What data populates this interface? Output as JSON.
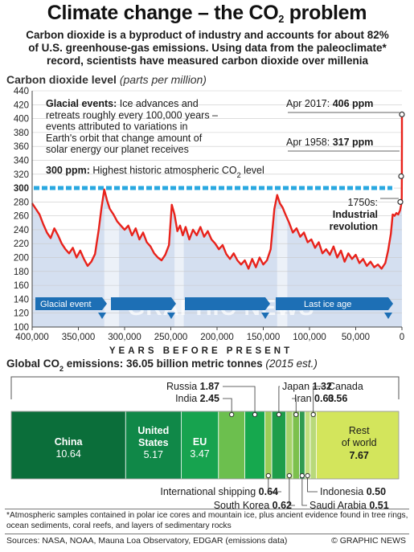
{
  "header": {
    "title_pre": "Climate change – the CO",
    "title_sub": "2",
    "title_post": " problem",
    "intro_lines": [
      "Carbon dioxide is a byproduct of industry and accounts for about 82%",
      "of U.S. greenhouse-gas emissions. Using data from the paleoclimate*",
      "record, scientists have measured carbon dioxide over millenia"
    ]
  },
  "section_co2": {
    "title": "Carbon dioxide level",
    "unit": "(parts per million)"
  },
  "chart_data": [
    {
      "type": "line",
      "title": "Carbon dioxide level",
      "ylabel": "(parts per million)",
      "xlabel": "YEARS BEFORE PRESENT",
      "x_reversed": true,
      "xlim": [
        400000,
        0
      ],
      "ylim": [
        100,
        440
      ],
      "y_ticks": [
        100,
        120,
        140,
        160,
        180,
        200,
        220,
        240,
        260,
        280,
        300,
        320,
        340,
        360,
        380,
        400,
        420,
        440
      ],
      "x_ticks": [
        400000,
        350000,
        300000,
        250000,
        200000,
        150000,
        100000,
        50000,
        0
      ],
      "x_tick_labels": [
        "400,000",
        "350,000",
        "300,000",
        "250,000",
        "200,000",
        "150,000",
        "100,000",
        "50,000",
        "0"
      ],
      "grid": true,
      "series": [
        {
          "color": "#e8221b",
          "x": [
            400000,
            396000,
            392000,
            388000,
            384000,
            380000,
            376000,
            372000,
            368000,
            364000,
            360000,
            356000,
            352000,
            348000,
            344000,
            340000,
            336000,
            332000,
            328000,
            325000,
            322000,
            319000,
            316000,
            312000,
            308000,
            304000,
            300000,
            296000,
            292000,
            288000,
            284000,
            280000,
            276000,
            272000,
            268000,
            264000,
            260000,
            256000,
            252000,
            249000,
            246000,
            243000,
            240000,
            237000,
            234000,
            230000,
            226000,
            222000,
            218000,
            214000,
            210000,
            206000,
            202000,
            198000,
            194000,
            190000,
            186000,
            182000,
            178000,
            174000,
            170000,
            166000,
            162000,
            158000,
            154000,
            150000,
            146000,
            142000,
            138000,
            135000,
            132000,
            129000,
            126000,
            122000,
            118000,
            114000,
            110000,
            106000,
            102000,
            98000,
            94000,
            90000,
            86000,
            82000,
            78000,
            74000,
            70000,
            66000,
            62000,
            58000,
            54000,
            50000,
            46000,
            42000,
            38000,
            34000,
            30000,
            26000,
            22000,
            18000,
            15000,
            12000,
            10000,
            8000,
            6000,
            4000,
            2000,
            1000,
            400,
            270,
            200,
            150,
            100,
            60,
            30,
            0
          ],
          "values": [
            278,
            270,
            262,
            248,
            236,
            228,
            242,
            232,
            220,
            212,
            206,
            214,
            200,
            210,
            198,
            188,
            194,
            205,
            240,
            272,
            298,
            282,
            270,
            262,
            252,
            246,
            240,
            246,
            232,
            242,
            226,
            236,
            222,
            216,
            206,
            200,
            196,
            204,
            218,
            276,
            262,
            238,
            246,
            232,
            244,
            226,
            240,
            232,
            244,
            230,
            238,
            226,
            220,
            212,
            218,
            205,
            198,
            206,
            196,
            190,
            196,
            184,
            198,
            186,
            200,
            190,
            196,
            212,
            270,
            290,
            278,
            272,
            262,
            250,
            236,
            242,
            230,
            236,
            222,
            226,
            214,
            222,
            206,
            212,
            204,
            216,
            200,
            210,
            194,
            206,
            198,
            204,
            192,
            198,
            188,
            194,
            186,
            190,
            184,
            192,
            210,
            234,
            262,
            260,
            264,
            262,
            268,
            275,
            280,
            280,
            290,
            300,
            317,
            335,
            370,
            406
          ]
        }
      ],
      "reference_line": {
        "value": 300,
        "color": "#2aa8e0",
        "label_bold": "300 ppm:",
        "label_pre": " Highest historic atmospheric CO",
        "label_sub": "2",
        "label_post": " level"
      },
      "annotations": {
        "glacial_bold": "Glacial events:",
        "glacial_lines": [
          " Ice advances and",
          "retreats roughly every 100,000 years –",
          "events attributed to variations in",
          "Earth's orbit that change amount of",
          "solar energy our planet receives"
        ],
        "apr2017_pre": "Apr 2017: ",
        "apr2017_val": "406 ppm",
        "apr1958_pre": "Apr 1958: ",
        "apr1958_val": "317 ppm",
        "industrial_pre": "1750s:",
        "industrial_bold_1": "Industrial",
        "industrial_bold_2": "revolution",
        "glacial_event_label": "Glacial event",
        "last_ice_age_label": "Last ice age",
        "watermark": "GRAPHIC NEWS"
      },
      "x_axis_title": "YEARS BEFORE PRESENT"
    },
    {
      "type": "bar",
      "title_pre": "Global CO",
      "title_sub": "2",
      "title_post": " emissions: 36.05 billion metric tonnes",
      "title_note": "(2015 est.)",
      "units": "billion metric tonnes",
      "categories": [
        "China",
        "United States",
        "EU",
        "India",
        "Russia",
        "International shipping",
        "Japan",
        "South Korea",
        "Iran",
        "Saudi Arabia",
        "Indonesia",
        "Canada",
        "Rest of world"
      ],
      "values": [
        10.64,
        5.17,
        3.47,
        2.45,
        1.87,
        0.64,
        1.32,
        0.62,
        0.63,
        0.51,
        0.5,
        0.56,
        7.67
      ],
      "colors": [
        "#0b6e3a",
        "#108848",
        "#17a34f",
        "#6cbf4e",
        "#16a84e",
        "#9acd57",
        "#1e9d4a",
        "#a7d36a",
        "#7cc04d",
        "#2f9b50",
        "#c2df7d",
        "#b8d97a",
        "#d3e55c"
      ],
      "inside_labels": [
        {
          "name": "China",
          "value": "10.64"
        },
        {
          "name_1": "United",
          "name_2": "States",
          "value": "5.17"
        },
        {
          "name": "EU",
          "value": "3.47"
        },
        {
          "name_1": "Rest",
          "name_2": "of world",
          "value": "7.67"
        }
      ],
      "top_callouts": [
        {
          "name": "Russia ",
          "value": "1.87"
        },
        {
          "name": "India ",
          "value": "2.45"
        },
        {
          "name": "Japan ",
          "value": "1.32"
        },
        {
          "name": "Iran ",
          "value": "0.63"
        },
        {
          "name": "Canada",
          "value": "0.56"
        }
      ],
      "bottom_callouts": [
        {
          "name": "International shipping ",
          "value": "0.64"
        },
        {
          "name": "South Korea ",
          "value": "0.62"
        },
        {
          "name": "Indonesia ",
          "value": "0.50"
        },
        {
          "name": "Saudi Arabia ",
          "value": "0.51"
        }
      ]
    }
  ],
  "footnote": "*Atmospheric samples contained in polar ice cores and mountain ice, plus ancient evidence found in tree rings, ocean sediments, coral reefs, and layers of sedimentary rocks",
  "sources": "Sources: NASA, NOAA, Mauna Loa Observatory, EDGAR (emissions data)",
  "credit": "© GRAPHIC NEWS",
  "colors": {
    "line": "#e8221b",
    "threshold": "#2aa8e0",
    "arrow_band": "#1d6fb5",
    "plot_bg": "#d4dff0"
  }
}
